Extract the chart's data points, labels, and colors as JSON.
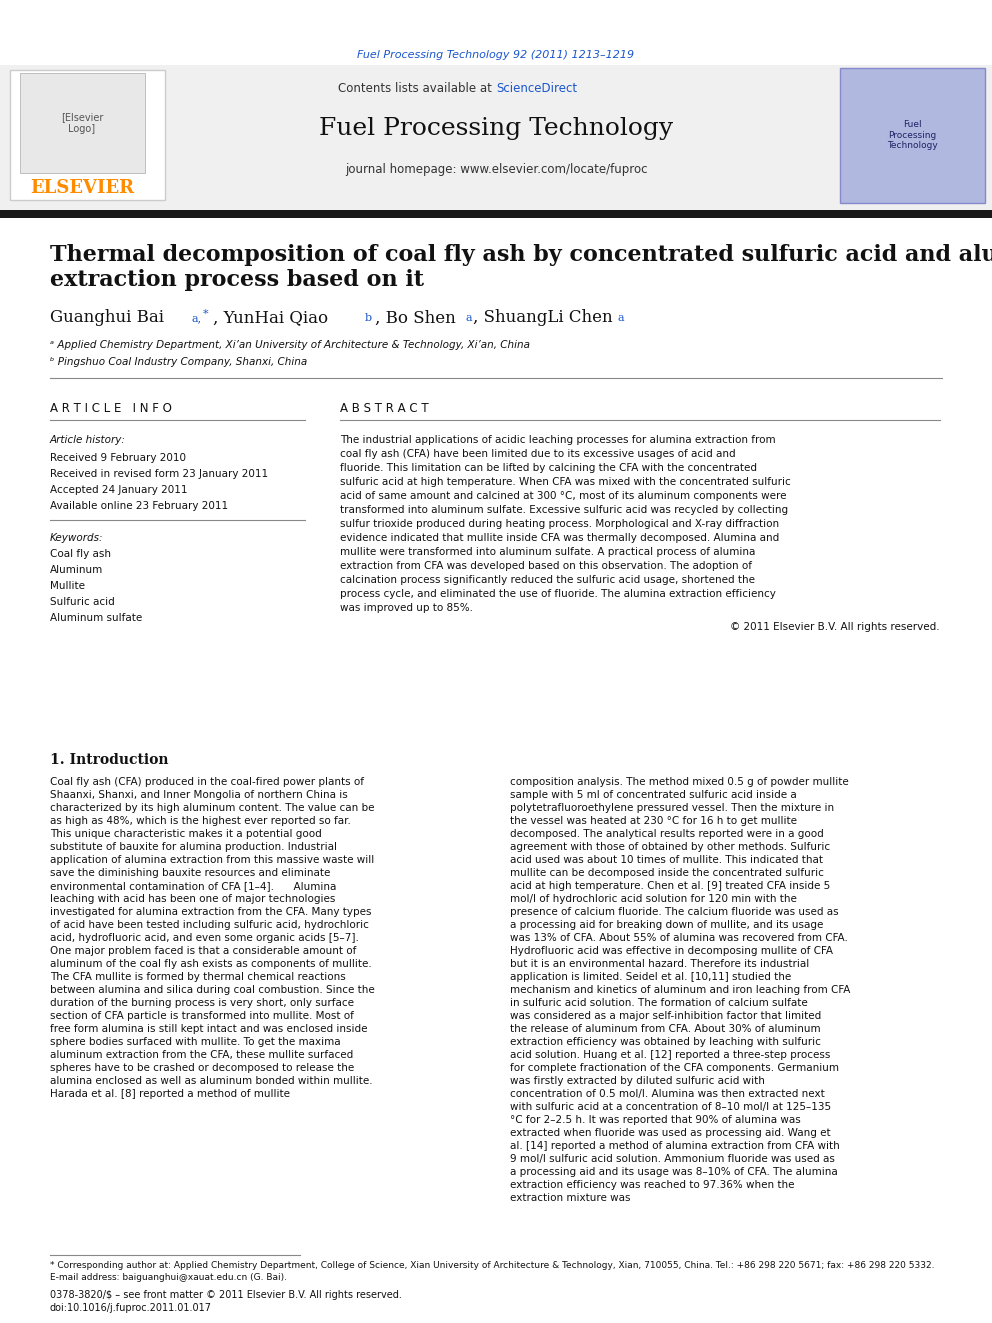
{
  "page_title_top": "Fuel Processing Technology 92 (2011) 1213–1219",
  "journal_name": "Fuel Processing Technology",
  "journal_url": "journal homepage: www.elsevier.com/locate/fuproc",
  "contents_line": "Contents lists available at ScienceDirect",
  "paper_title_line1": "Thermal decomposition of coal fly ash by concentrated sulfuric acid and alumina",
  "paper_title_line2": "extraction process based on it",
  "authors": "Guanghui Bai  °,*, YunHai Qiao  ᵇ, Bo Shen  °, ShuangLi Chen  °",
  "affil_a": "ᵃ Applied Chemistry Department, Xi’an University of Architecture & Technology, Xi’an, China",
  "affil_b": "ᵇ Pingshuo Coal Industry Company, Shanxi, China",
  "article_info_header": "A R T I C L E   I N F O",
  "article_history_label": "Article history:",
  "received": "Received 9 February 2010",
  "revised": "Received in revised form 23 January 2011",
  "accepted": "Accepted 24 January 2011",
  "available": "Available online 23 February 2011",
  "keywords_label": "Keywords:",
  "keywords": [
    "Coal fly ash",
    "Aluminum",
    "Mullite",
    "Sulfuric acid",
    "Aluminum sulfate"
  ],
  "abstract_header": "A B S T R A C T",
  "abstract_text": "The industrial applications of acidic leaching processes for alumina extraction from coal fly ash (CFA) have been limited due to its excessive usages of acid and fluoride. This limitation can be lifted by calcining the CFA with the concentrated sulfuric acid at high temperature. When CFA was mixed with the concentrated sulfuric acid of same amount and calcined at 300 °C, most of its aluminum components were transformed into aluminum sulfate. Excessive sulfuric acid was recycled by collecting sulfur trioxide produced during heating process. Morphological and X-ray diffraction evidence indicated that mullite inside CFA was thermally decomposed. Alumina and mullite were transformed into aluminum sulfate. A practical process of alumina extraction from CFA was developed based on this observation. The adoption of calcination process significantly reduced the sulfuric acid usage, shortened the process cycle, and eliminated the use of fluoride. The alumina extraction efficiency was improved up to 85%.",
  "copyright": "© 2011 Elsevier B.V. All rights reserved.",
  "intro_header": "1. Introduction",
  "intro_col1": "Coal fly ash (CFA) produced in the coal-fired power plants of Shaanxi, Shanxi, and Inner Mongolia of northern China is characterized by its high aluminum content. The value can be as high as 48%, which is the highest ever reported so far. This unique characteristic makes it a potential good substitute of bauxite for alumina production. Industrial application of alumina extraction from this massive waste will save the diminishing bauxite resources and eliminate environmental contamination of CFA [1–4].\n\n    Alumina leaching with acid has been one of major technologies investigated for alumina extraction from the CFA. Many types of acid have been tested including sulfuric acid, hydrochloric acid, hydrofluoric acid, and even some organic acids [5–7]. One major problem faced is that a considerable amount of aluminum of the coal fly ash exists as components of mullite. The CFA mullite is formed by thermal chemical reactions between alumina and silica during coal combustion. Since the duration of the burning process is very short, only surface section of CFA particle is transformed into mullite. Most of free form alumina is still kept intact and was enclosed inside sphere bodies surfaced with mullite. To get the maxima aluminum extraction from the CFA, these mullite surfaced spheres have to be crashed or decomposed to release the alumina enclosed as well as aluminum bonded within mullite. Harada et al. [8] reported a method of mullite",
  "intro_col2": "composition analysis. The method mixed 0.5 g of powder mullite sample with 5 ml of concentrated sulfuric acid inside a polytetrafluoroethylene pressured vessel. Then the mixture in the vessel was heated at 230 °C for 16 h to get mullite decomposed. The analytical results reported were in a good agreement with those of obtained by other methods. Sulfuric acid used was about 10 times of mullite. This indicated that mullite can be decomposed inside the concentrated sulfuric acid at high temperature. Chen et al. [9] treated CFA inside 5 mol/l of hydrochloric acid solution for 120 min with the presence of calcium fluoride. The calcium fluoride was used as a processing aid for breaking down of mullite, and its usage was 13% of CFA. About 55% of alumina was recovered from CFA. Hydrofluoric acid was effective in decomposing mullite of CFA but it is an environmental hazard. Therefore its industrial application is limited. Seidel et al. [10,11] studied the mechanism and kinetics of aluminum and iron leaching from CFA in sulfuric acid solution. The formation of calcium sulfate was considered as a major self-inhibition factor that limited the release of aluminum from CFA. About 30% of aluminum extraction efficiency was obtained by leaching with sulfuric acid solution. Huang et al. [12] reported a three-step process for complete fractionation of the CFA components. Germanium was firstly extracted by diluted sulfuric acid with concentration of 0.5 mol/l. Alumina was then extracted next with sulfuric acid at a concentration of 8–10 mol/l at 125–135 °C for 2–2.5 h. It was reported that 90% of alumina was extracted when fluoride was used as processing aid. Wang et al. [14] reported a method of alumina extraction from CFA with 9 mol/l sulfuric acid solution. Ammonium fluoride was used as a processing aid and its usage was 8–10% of CFA. The alumina extraction efficiency was reached to 97.36% when the extraction mixture was",
  "footnote_star": "* Corresponding author at: Applied Chemistry Department, College of Science, Xian University of Architecture & Technology, Xian, 710055, China. Tel.: +86 298 220 5671; fax: +86 298 220 5332.",
  "footnote_email": "E-mail address: baiguanghui@xauat.edu.cn (G. Bai).",
  "bottom_line1": "0378-3820/$ – see front matter © 2011 Elsevier B.V. All rights reserved.",
  "bottom_line2": "doi:10.1016/j.fuproc.2011.01.017",
  "elsevier_color": "#FF8C00",
  "link_color": "#1a56cc",
  "header_bg_color": "#f0f0f0",
  "black_bar_color": "#1a1a1a"
}
